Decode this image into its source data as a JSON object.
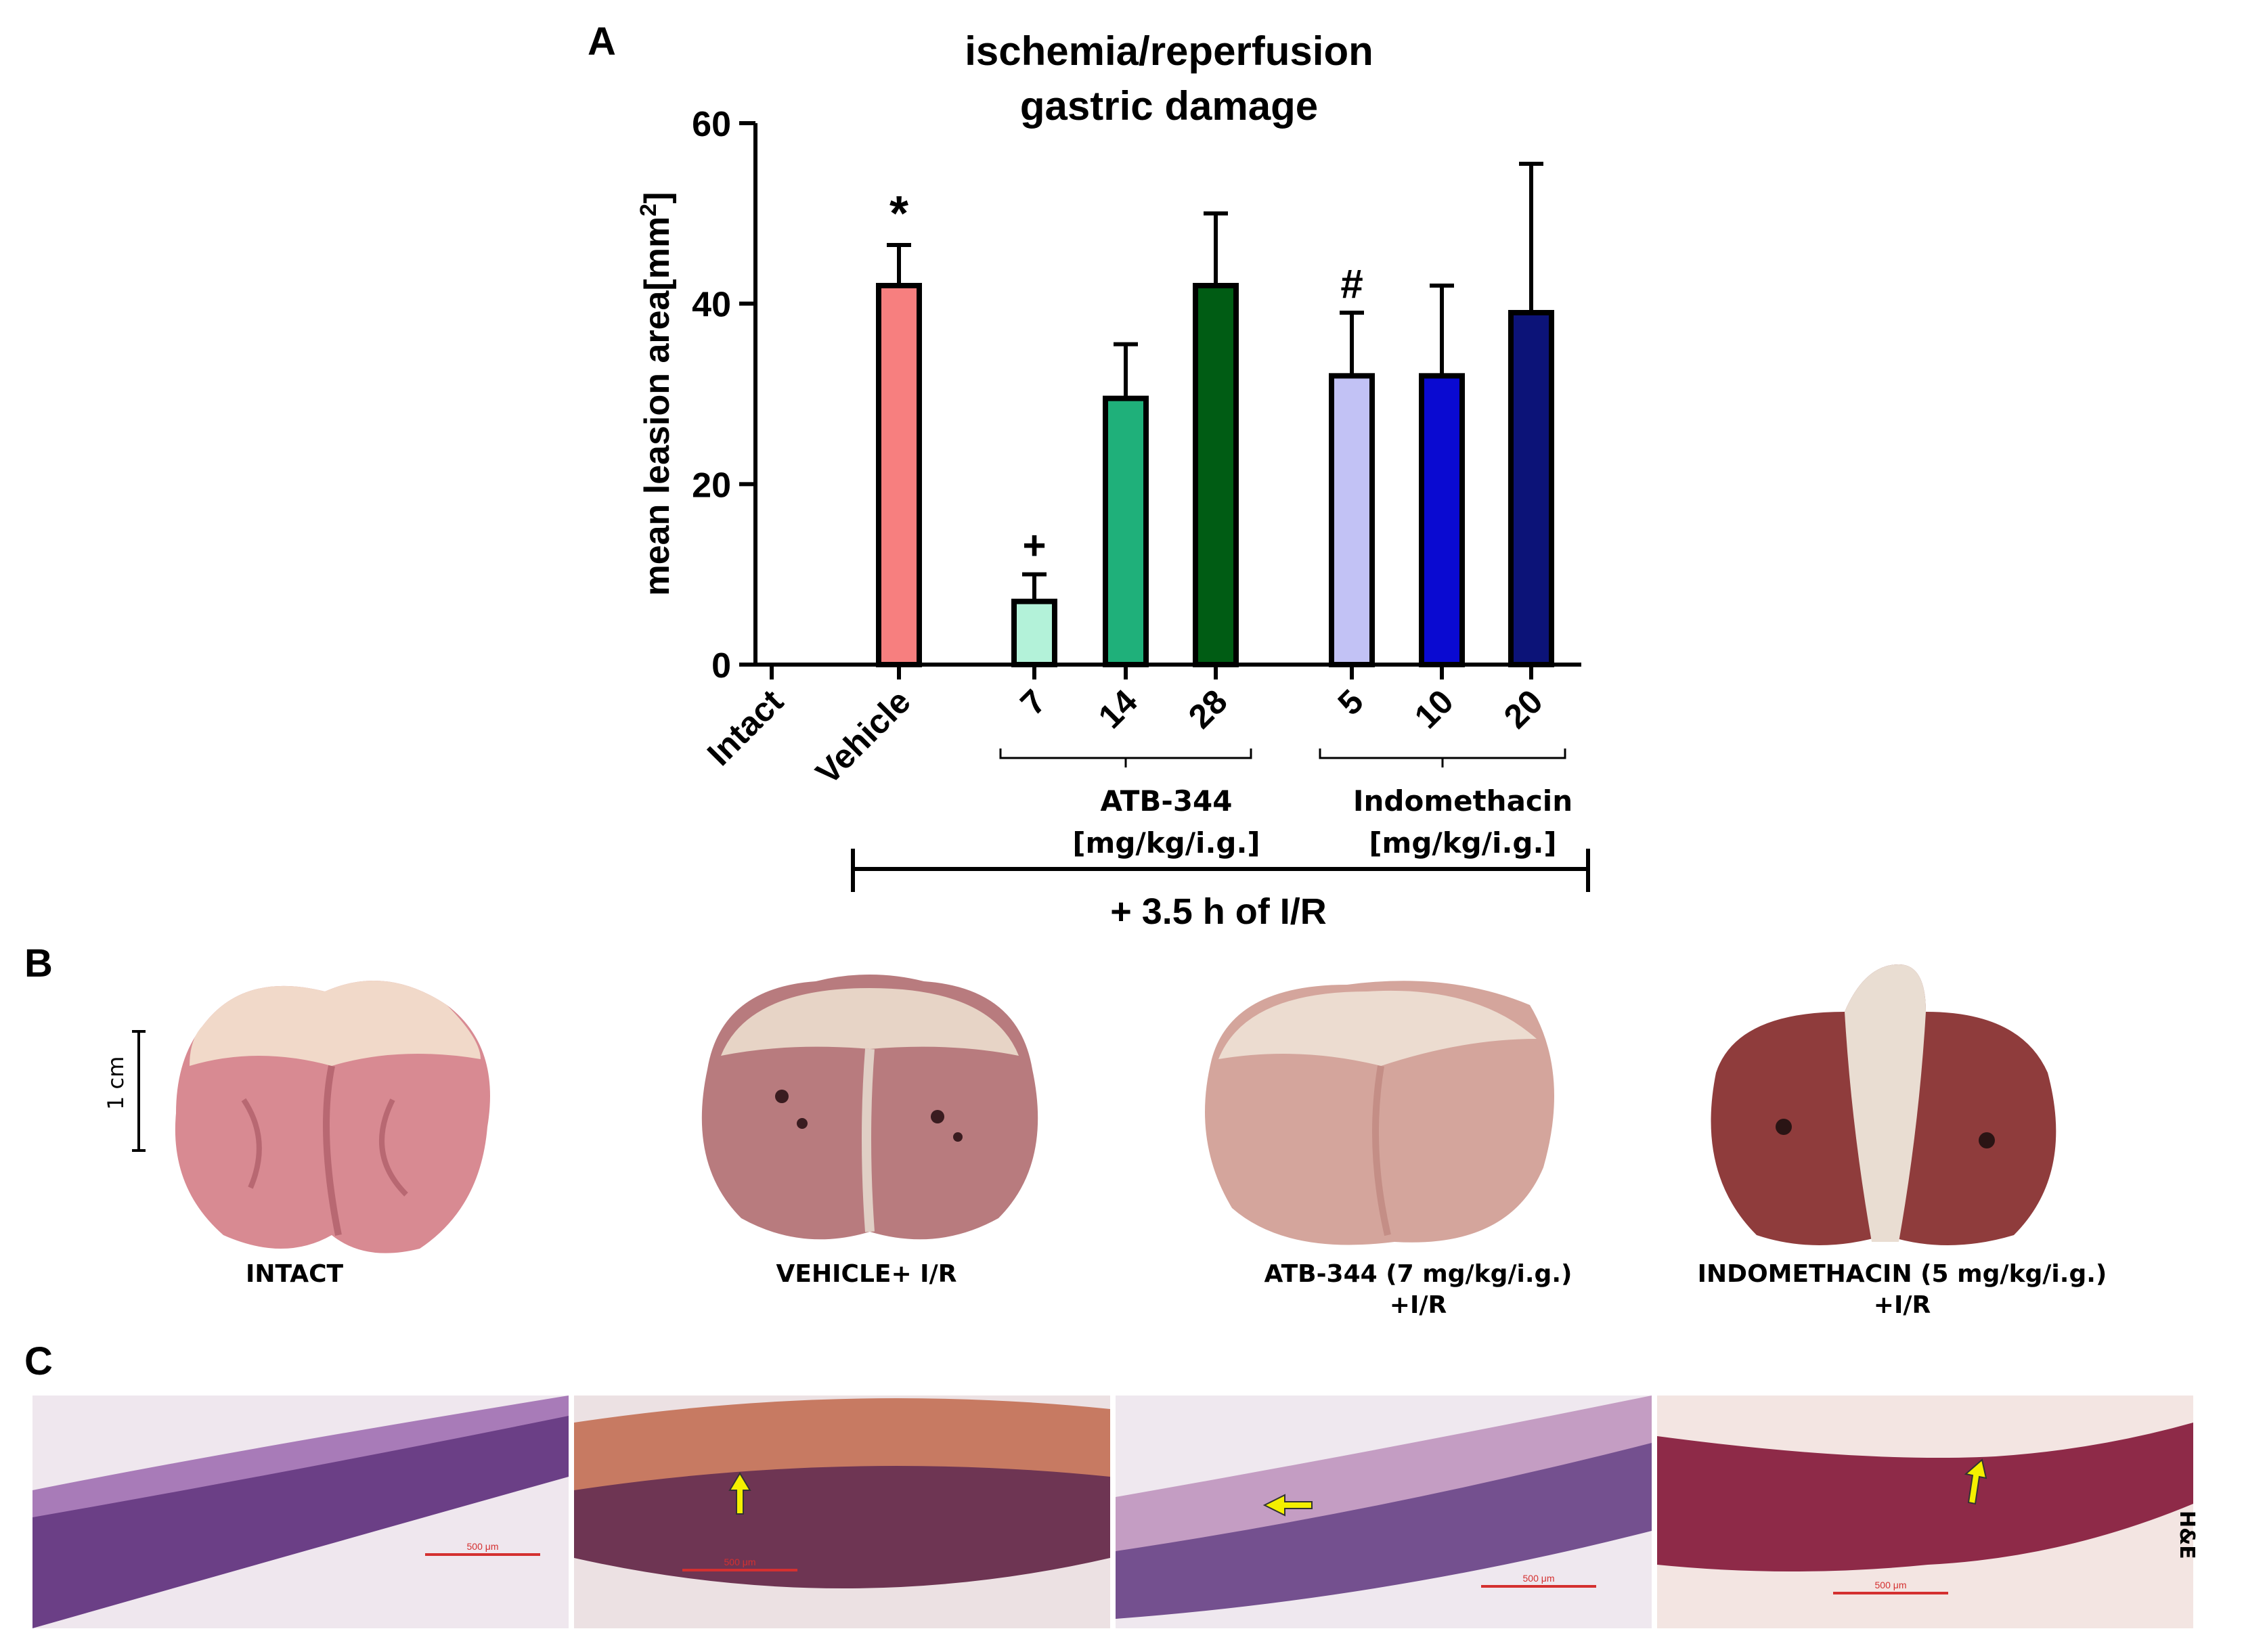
{
  "panels": {
    "a": "A",
    "b": "B",
    "c": "C"
  },
  "chart_data": {
    "type": "bar",
    "title": "ischemia/reperfusion\ngastric damage",
    "title_lines": [
      "ischemia/reperfusion",
      "gastric damage"
    ],
    "ylabel": "mean leasion area[mm",
    "ylabel_sup": "2",
    "ylabel_close": "]",
    "ylim": [
      0,
      60
    ],
    "yticks": [
      "0",
      "20",
      "40",
      "60"
    ],
    "categories": [
      "Intact",
      "Vehicle",
      "7",
      "14",
      "28",
      "5",
      "10",
      "20"
    ],
    "values": [
      0,
      42,
      7,
      29.5,
      42,
      32,
      32,
      39
    ],
    "errors": [
      0,
      4.5,
      3,
      6,
      8,
      7,
      10,
      16.5
    ],
    "colors": [
      "#ffffff",
      "#f77f7f",
      "#b3f2d9",
      "#1fb07a",
      "#005c14",
      "#c2c2f5",
      "#0a0ad1",
      "#0c1378"
    ],
    "markers": [
      "",
      "*",
      "+",
      "",
      "",
      "#",
      "",
      ""
    ],
    "groups": [
      {
        "label_lines": [
          "ATB-344",
          "[mg/kg/i.g.]"
        ]
      },
      {
        "label_lines": [
          "Indomethacin",
          "[mg/kg/i.g.]"
        ]
      }
    ],
    "treatment": "+ 3.5 h of I/R"
  },
  "photos": {
    "scale_label": "1 cm",
    "captions": [
      "INTACT",
      "VEHICLE+ I/R",
      "ATB-344 (7 mg/kg/i.g.)\n+I/R",
      "INDOMETHACIN (5 mg/kg/i.g.)\n+I/R"
    ]
  },
  "histology": {
    "stain": "H&E",
    "scale_bar_text": "500 μm"
  }
}
